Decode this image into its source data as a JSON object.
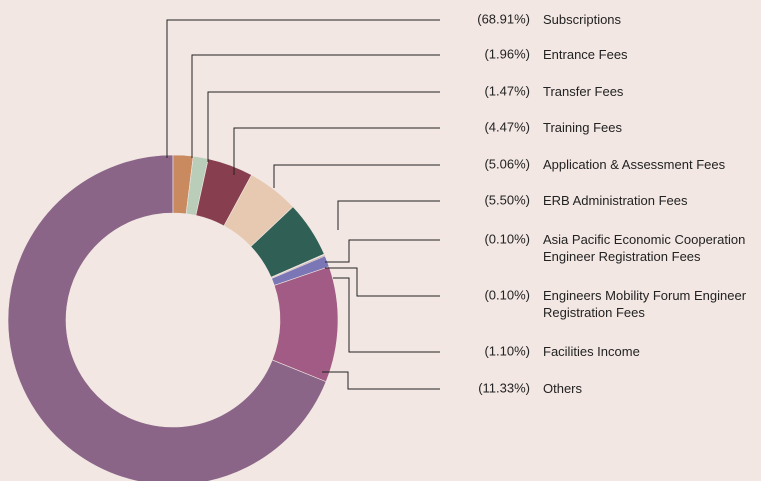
{
  "chart_data": {
    "type": "donut",
    "categories": [
      "Subscriptions",
      "Entrance Fees",
      "Transfer Fees",
      "Training Fees",
      "Application & Assessment Fees",
      "ERB Administration Fees",
      "Asia Pacific Economic Cooperation Engineer Registration Fees",
      "Engineers Mobility Forum Engineer Registration Fees",
      "Facilities Income",
      "Others"
    ],
    "values": [
      68.91,
      1.96,
      1.47,
      4.47,
      5.06,
      5.5,
      0.1,
      0.1,
      1.1,
      11.33
    ],
    "value_labels": [
      "(68.91%)",
      "(1.96%)",
      "(1.47%)",
      "(4.47%)",
      "(5.06%)",
      "(5.50%)",
      "(0.10%)",
      "(0.10%)",
      "(1.10%)",
      "(11.33%)"
    ],
    "colors": [
      "#8a6587",
      "#c98a5f",
      "#b9cdb9",
      "#873f4f",
      "#e6c9b0",
      "#2f5f55",
      "#d3dcdc",
      "#8f5a48",
      "#7b76b5",
      "#a15b84"
    ]
  }
}
